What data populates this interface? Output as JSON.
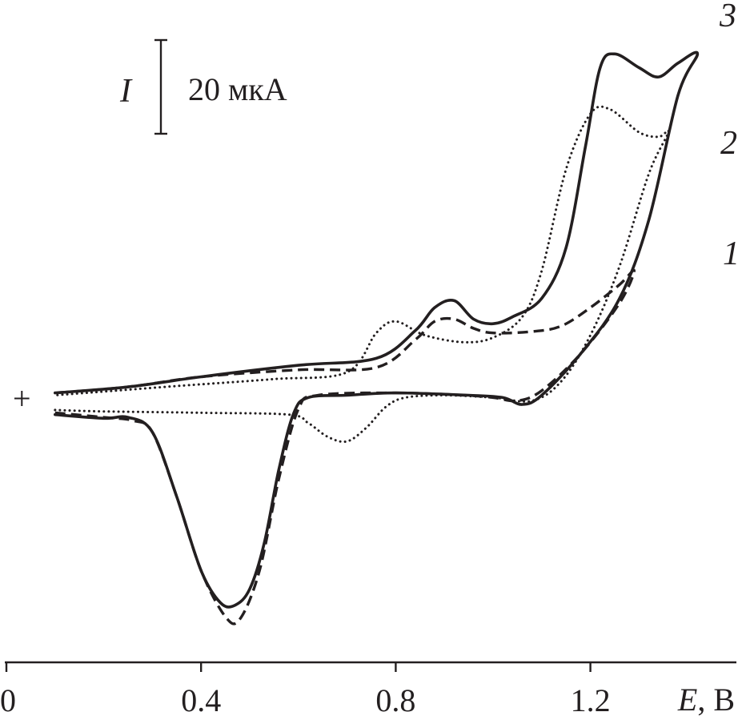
{
  "chart_data": {
    "type": "line",
    "title": "",
    "xlabel_var": "E",
    "xlabel_sep": ", ",
    "xlabel_unit": "В",
    "ylabel": "",
    "xlim": [
      0,
      1.5
    ],
    "ylim": [
      -52,
      80
    ],
    "x_ticks": [
      0,
      0.4,
      0.8,
      1.2
    ],
    "x_tick_labels": [
      "0",
      "0.4",
      "0.8",
      "1.2"
    ],
    "grid": false,
    "scale_bar": {
      "symbol": "I",
      "label": "20 мкА",
      "value": 20
    },
    "origin_marker": "+",
    "curve_labels": [
      "1",
      "2",
      "3"
    ],
    "series": [
      {
        "label_index": 0,
        "style": "dashed",
        "points": [
          [
            0.1,
            -3.8
          ],
          [
            0.2,
            -4.8
          ],
          [
            0.26,
            -5.5
          ],
          [
            0.3,
            -8
          ],
          [
            0.35,
            -22
          ],
          [
            0.4,
            -38
          ],
          [
            0.45,
            -48
          ],
          [
            0.48,
            -48.5
          ],
          [
            0.52,
            -38
          ],
          [
            0.56,
            -18
          ],
          [
            0.6,
            -3
          ],
          [
            0.64,
            0
          ],
          [
            0.8,
            0.5
          ],
          [
            0.94,
            0
          ],
          [
            1.0,
            -0.5
          ],
          [
            1.05,
            -1.2
          ],
          [
            1.1,
            1
          ],
          [
            1.18,
            9
          ],
          [
            1.26,
            20
          ],
          [
            1.29,
            27
          ],
          [
            1.26,
            24
          ],
          [
            1.2,
            19
          ],
          [
            1.14,
            15
          ],
          [
            1.08,
            13.8
          ],
          [
            1.0,
            13.5
          ],
          [
            0.96,
            14.5
          ],
          [
            0.92,
            16.5
          ],
          [
            0.88,
            16
          ],
          [
            0.84,
            12
          ],
          [
            0.76,
            6
          ],
          [
            0.6,
            5.5
          ],
          [
            0.4,
            4
          ],
          [
            0.25,
            1.8
          ],
          [
            0.1,
            0.5
          ]
        ]
      },
      {
        "label_index": 1,
        "style": "dotted",
        "points": [
          [
            0.1,
            -3.2
          ],
          [
            0.2,
            -3.5
          ],
          [
            0.4,
            -3.8
          ],
          [
            0.58,
            -4.2
          ],
          [
            0.62,
            -6
          ],
          [
            0.66,
            -9
          ],
          [
            0.7,
            -10
          ],
          [
            0.74,
            -7
          ],
          [
            0.78,
            -2.5
          ],
          [
            0.82,
            -0.5
          ],
          [
            0.9,
            0
          ],
          [
            1.0,
            -0.5
          ],
          [
            1.08,
            -1.2
          ],
          [
            1.14,
            3
          ],
          [
            1.2,
            13
          ],
          [
            1.26,
            28
          ],
          [
            1.32,
            48
          ],
          [
            1.36,
            57
          ],
          [
            1.34,
            56
          ],
          [
            1.3,
            57
          ],
          [
            1.24,
            62
          ],
          [
            1.2,
            61
          ],
          [
            1.15,
            49
          ],
          [
            1.1,
            27
          ],
          [
            1.06,
            17
          ],
          [
            1.0,
            12.5
          ],
          [
            0.94,
            11.5
          ],
          [
            0.86,
            13
          ],
          [
            0.8,
            16
          ],
          [
            0.76,
            13.5
          ],
          [
            0.7,
            5
          ],
          [
            0.55,
            3.5
          ],
          [
            0.35,
            2
          ],
          [
            0.2,
            0.8
          ],
          [
            0.1,
            0
          ]
        ]
      },
      {
        "label_index": 2,
        "style": "solid",
        "points": [
          [
            0.1,
            -4.2
          ],
          [
            0.2,
            -5.0
          ],
          [
            0.25,
            -4.8
          ],
          [
            0.3,
            -8
          ],
          [
            0.35,
            -22
          ],
          [
            0.4,
            -38
          ],
          [
            0.44,
            -45
          ],
          [
            0.47,
            -45.5
          ],
          [
            0.5,
            -42
          ],
          [
            0.53,
            -32
          ],
          [
            0.56,
            -16
          ],
          [
            0.59,
            -4
          ],
          [
            0.62,
            -0.5
          ],
          [
            0.7,
            0
          ],
          [
            0.8,
            0.5
          ],
          [
            0.95,
            0
          ],
          [
            1.02,
            -0.5
          ],
          [
            1.06,
            -2
          ],
          [
            1.1,
            0
          ],
          [
            1.18,
            9
          ],
          [
            1.26,
            21
          ],
          [
            1.32,
            38
          ],
          [
            1.38,
            65
          ],
          [
            1.42,
            74
          ],
          [
            1.38,
            72
          ],
          [
            1.34,
            69
          ],
          [
            1.3,
            71
          ],
          [
            1.25,
            74
          ],
          [
            1.22,
            71
          ],
          [
            1.19,
            54
          ],
          [
            1.15,
            32
          ],
          [
            1.1,
            21
          ],
          [
            1.04,
            17
          ],
          [
            1.0,
            15.5
          ],
          [
            0.96,
            16.5
          ],
          [
            0.92,
            20.5
          ],
          [
            0.88,
            19
          ],
          [
            0.84,
            14
          ],
          [
            0.76,
            8
          ],
          [
            0.6,
            6.5
          ],
          [
            0.4,
            4
          ],
          [
            0.25,
            1.8
          ],
          [
            0.1,
            0.5
          ]
        ]
      }
    ]
  }
}
